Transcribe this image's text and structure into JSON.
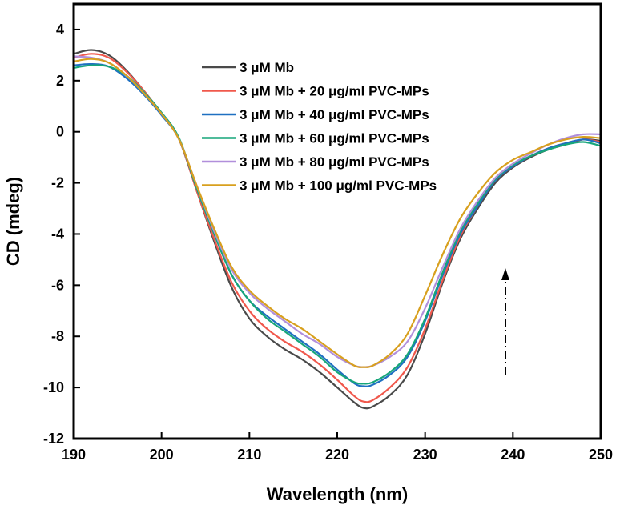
{
  "chart_data": {
    "type": "line",
    "title": "",
    "xlabel": "Wavelength (nm)",
    "ylabel": "CD (mdeg)",
    "xlim": [
      190,
      250
    ],
    "ylim": [
      -12,
      5
    ],
    "xticks": [
      "190",
      "200",
      "210",
      "220",
      "230",
      "240",
      "250"
    ],
    "yticks": [
      "4",
      "2",
      "0",
      "-2",
      "-4",
      "-6",
      "-8",
      "-10",
      "-12"
    ],
    "grid": false,
    "legend_position": "top-center",
    "annotation": "upward dash-dot arrow near 239 nm",
    "x": [
      190,
      192,
      194,
      196,
      198,
      200,
      202,
      204,
      206,
      208,
      210,
      212,
      214,
      216,
      218,
      220,
      222,
      223,
      224,
      226,
      228,
      230,
      232,
      234,
      236,
      238,
      240,
      242,
      244,
      246,
      248,
      250
    ],
    "series": [
      {
        "name": "3 μM Mb",
        "color": "#4a4a4a",
        "values": [
          3.05,
          3.2,
          3.0,
          2.4,
          1.6,
          0.7,
          -0.3,
          -2.3,
          -4.3,
          -6.1,
          -7.3,
          -8.0,
          -8.5,
          -8.9,
          -9.4,
          -10.0,
          -10.6,
          -10.8,
          -10.75,
          -10.3,
          -9.5,
          -7.9,
          -5.9,
          -4.2,
          -3.0,
          -2.0,
          -1.4,
          -1.0,
          -0.7,
          -0.5,
          -0.3,
          -0.35
        ]
      },
      {
        "name": "3 μM Mb + 20 μg/ml PVC-MPs",
        "color": "#f0584c",
        "values": [
          2.9,
          3.05,
          2.9,
          2.35,
          1.6,
          0.7,
          -0.3,
          -2.3,
          -4.2,
          -5.9,
          -7.0,
          -7.7,
          -8.2,
          -8.6,
          -9.1,
          -9.7,
          -10.35,
          -10.55,
          -10.5,
          -10.0,
          -9.2,
          -7.7,
          -5.8,
          -4.1,
          -2.9,
          -1.9,
          -1.35,
          -0.95,
          -0.65,
          -0.45,
          -0.3,
          -0.4
        ]
      },
      {
        "name": "3 μM Mb + 40 μg/ml PVC-MPs",
        "color": "#1f70c1",
        "values": [
          2.6,
          2.65,
          2.55,
          2.1,
          1.45,
          0.65,
          -0.3,
          -2.2,
          -4.0,
          -5.6,
          -6.6,
          -7.2,
          -7.7,
          -8.2,
          -8.7,
          -9.3,
          -9.85,
          -9.95,
          -9.9,
          -9.5,
          -8.8,
          -7.4,
          -5.6,
          -4.0,
          -2.9,
          -1.9,
          -1.35,
          -0.95,
          -0.65,
          -0.45,
          -0.3,
          -0.45
        ]
      },
      {
        "name": "3 μM Mb + 60 μg/ml PVC-MPs",
        "color": "#17a67a",
        "values": [
          2.5,
          2.6,
          2.55,
          2.2,
          1.55,
          0.75,
          -0.25,
          -2.2,
          -4.0,
          -5.6,
          -6.6,
          -7.3,
          -7.8,
          -8.3,
          -8.8,
          -9.4,
          -9.8,
          -9.85,
          -9.8,
          -9.4,
          -8.7,
          -7.3,
          -5.5,
          -3.9,
          -2.8,
          -1.85,
          -1.3,
          -0.95,
          -0.7,
          -0.5,
          -0.4,
          -0.55
        ]
      },
      {
        "name": "3 μM Mb + 80 μg/ml PVC-MPs",
        "color": "#b18fdb",
        "values": [
          2.95,
          2.9,
          2.7,
          2.2,
          1.5,
          0.7,
          -0.3,
          -2.1,
          -3.9,
          -5.4,
          -6.3,
          -6.9,
          -7.4,
          -7.9,
          -8.3,
          -8.8,
          -9.15,
          -9.2,
          -9.15,
          -8.8,
          -8.2,
          -6.9,
          -5.3,
          -3.8,
          -2.7,
          -1.8,
          -1.25,
          -0.85,
          -0.5,
          -0.25,
          -0.1,
          -0.1
        ]
      },
      {
        "name": "3 μM Mb + 100 μg/ml PVC-MPs",
        "color": "#d8a01e",
        "values": [
          2.75,
          2.85,
          2.7,
          2.2,
          1.5,
          0.7,
          -0.3,
          -2.1,
          -3.8,
          -5.3,
          -6.2,
          -6.8,
          -7.3,
          -7.7,
          -8.2,
          -8.7,
          -9.15,
          -9.2,
          -9.15,
          -8.7,
          -7.9,
          -6.4,
          -4.8,
          -3.4,
          -2.4,
          -1.6,
          -1.1,
          -0.8,
          -0.5,
          -0.3,
          -0.2,
          -0.25
        ]
      }
    ]
  }
}
